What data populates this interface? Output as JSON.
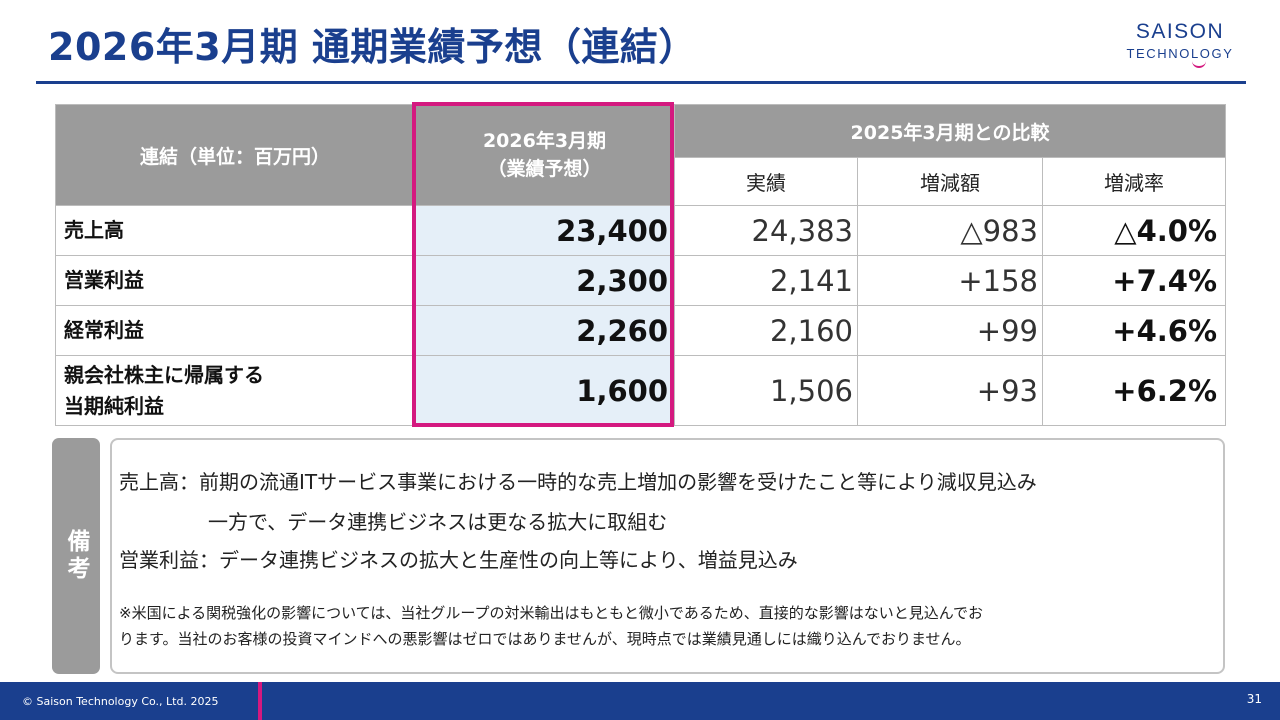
{
  "title": "2026年3月期 通期業績予想（連結）",
  "logo": {
    "top": "SAISON",
    "bottom": "TECHNOLOGY"
  },
  "table": {
    "header_label": "連結（単位：百万円）",
    "forecast_header": [
      "2026年3月期",
      "（業績予想）"
    ],
    "comparison_header": "2025年3月期との比較",
    "sub_headers": [
      "実績",
      "増減額",
      "増減率"
    ],
    "rows": [
      {
        "label": [
          "売上高"
        ],
        "forecast": "23,400",
        "actual": "24,383",
        "change": "△983",
        "rate": "△4.0%"
      },
      {
        "label": [
          "営業利益"
        ],
        "forecast": "2,300",
        "actual": "2,141",
        "change": "+158",
        "rate": "+7.4%"
      },
      {
        "label": [
          "経常利益"
        ],
        "forecast": "2,260",
        "actual": "2,160",
        "change": "+99",
        "rate": "+4.6%"
      },
      {
        "label": [
          "親会社株主に帰属する",
          "当期純利益"
        ],
        "forecast": "1,600",
        "actual": "1,506",
        "change": "+93",
        "rate": "+6.2%"
      }
    ]
  },
  "notes": {
    "tab_label": "備考",
    "line1": "売上高：前期の流通ITサービス事業における一時的な売上増加の影響を受けたこと等により減収見込み",
    "line2": "一方で、データ連携ビジネスは更なる拡大に取組む",
    "line3": "営業利益：データ連携ビジネスの拡大と生産性の向上等により、増益見込み",
    "small_line1": "※米国による関税強化の影響については、当社グループの対米輸出はもともと微小であるため、直接的な影響はないと見込んでお",
    "small_line2": "ります。当社のお客様の投資マインドへの悪影響はゼロではありませんが、現時点では業績見通しには織り込んでおりません。"
  },
  "footer": {
    "copyright": "© Saison Technology Co., Ltd. 2025",
    "page": "31"
  },
  "colors": {
    "brand_blue": "#1a3f8e",
    "accent_magenta": "#d4197f",
    "header_gray": "#9b9b9b",
    "forecast_fill": "#e5eff8"
  }
}
